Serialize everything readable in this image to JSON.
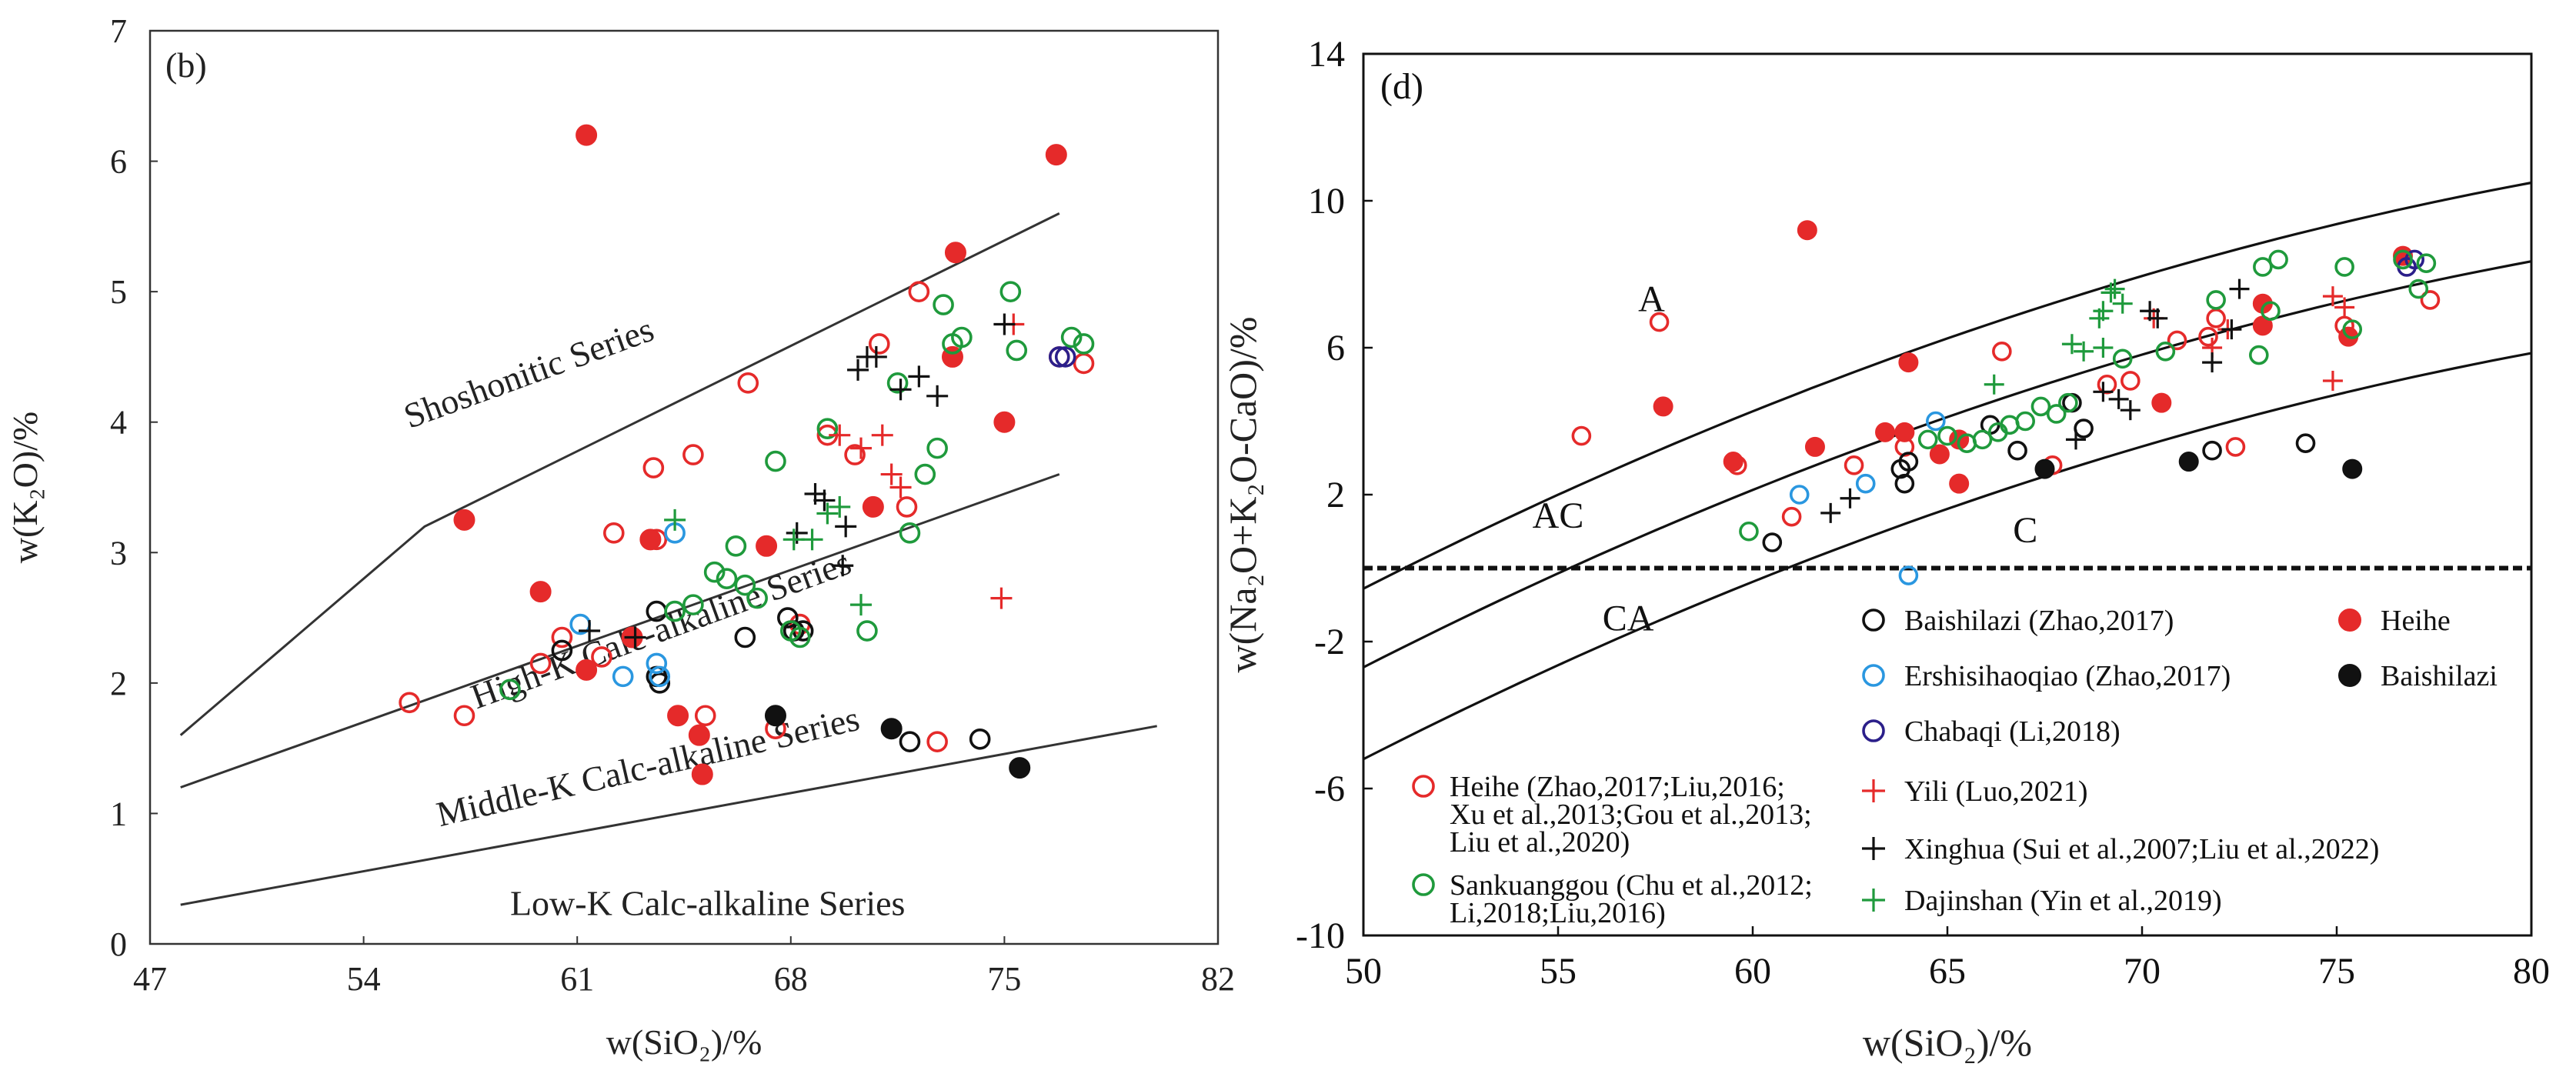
{
  "colors": {
    "red": "#e52a2a",
    "green": "#1f9a3c",
    "blue": "#2a97e0",
    "navy": "#2b1f8a",
    "black": "#111111"
  },
  "chart_data": [
    {
      "type": "scatter",
      "panel_label": "(b)",
      "xlabel": "w(SiO₂)/%",
      "ylabel": "w(K₂O)/%",
      "xlim": [
        47,
        82
      ],
      "ylim": [
        0,
        7
      ],
      "xticks": [
        47,
        54,
        61,
        68,
        75,
        82
      ],
      "yticks": [
        0,
        1,
        2,
        3,
        4,
        5,
        6,
        7
      ],
      "region_labels": [
        "Shoshonitic Series",
        "High-K Calc-alkaline Series",
        "Middle-K Calc-alkaline Series",
        "Low-K Calc-alkaline Series"
      ],
      "boundary_lines": [
        [
          [
            48,
            1.6
          ],
          [
            56,
            3.2
          ],
          [
            76.8,
            5.6
          ]
        ],
        [
          [
            48,
            1.2
          ],
          [
            76.8,
            3.6
          ]
        ],
        [
          [
            48,
            0.3
          ],
          [
            80,
            1.67
          ]
        ]
      ],
      "series": [
        {
          "name": "Heihe (Zhao,2017;Liu,2016;Xu et al.,2013;Gou et al.,2013;Liu et al.,2020)",
          "marker": "open-circle",
          "color": "red",
          "x": [
            55.5,
            57.3,
            59.8,
            60.5,
            62.2,
            63.5,
            63.6,
            64.8,
            65.2,
            66.6,
            67.5,
            68.3,
            69.2,
            70.1,
            70.9,
            71.8,
            72.2,
            76.8,
            77.6,
            72.8,
            61.8
          ],
          "y": [
            1.85,
            1.75,
            2.15,
            2.35,
            3.15,
            3.65,
            3.1,
            3.75,
            1.75,
            4.3,
            1.65,
            2.45,
            3.9,
            3.75,
            4.6,
            3.35,
            5.0,
            4.5,
            4.45,
            1.55,
            2.2
          ]
        },
        {
          "name": "Heihe",
          "marker": "filled-circle",
          "color": "red",
          "x": [
            61.3,
            57.3,
            59.8,
            61.3,
            62.8,
            63.4,
            64.3,
            65.0,
            65.1,
            67.2,
            70.7,
            73.4,
            73.3,
            75.0,
            76.7
          ],
          "y": [
            6.2,
            3.25,
            2.7,
            2.1,
            2.35,
            3.1,
            1.75,
            1.6,
            1.3,
            3.05,
            3.35,
            5.3,
            4.5,
            4.0,
            6.05
          ]
        },
        {
          "name": "Baishilazi (Zhao,2017)",
          "marker": "open-circle",
          "color": "black",
          "x": [
            60.5,
            63.6,
            63.6,
            63.7,
            66.5,
            67.9,
            68.1,
            68.4,
            71.9,
            74.2
          ],
          "y": [
            2.25,
            2.55,
            2.05,
            2.0,
            2.35,
            2.5,
            2.4,
            2.4,
            1.55,
            1.57
          ]
        },
        {
          "name": "Baishilazi",
          "marker": "filled-circle",
          "color": "black",
          "x": [
            67.5,
            71.3,
            75.5
          ],
          "y": [
            1.75,
            1.65,
            1.35
          ]
        },
        {
          "name": "Ershisihaoqiao (Zhao,2017)",
          "marker": "open-circle",
          "color": "blue",
          "x": [
            61.1,
            62.5,
            63.6,
            63.7,
            64.2
          ],
          "y": [
            2.45,
            2.05,
            2.15,
            2.05,
            3.15
          ]
        },
        {
          "name": "Chabaqi (Li,2018)",
          "marker": "open-circle",
          "color": "navy",
          "x": [
            76.8,
            77.0
          ],
          "y": [
            4.5,
            4.5
          ]
        },
        {
          "name": "Sankuanggou (Chu et al.,2012;Li,2018;Liu,2016)",
          "marker": "open-circle",
          "color": "green",
          "x": [
            58.8,
            64.2,
            64.8,
            65.5,
            65.9,
            66.2,
            66.5,
            66.9,
            67.5,
            68.0,
            68.3,
            69.2,
            70.5,
            71.5,
            71.9,
            72.4,
            72.8,
            73.0,
            73.3,
            73.6,
            75.2,
            75.4,
            77.2,
            77.6
          ],
          "y": [
            1.95,
            2.55,
            2.6,
            2.85,
            2.8,
            3.05,
            2.75,
            2.65,
            3.7,
            2.4,
            2.35,
            3.95,
            2.4,
            4.3,
            3.15,
            3.6,
            3.8,
            4.9,
            4.6,
            4.65,
            5.0,
            4.55,
            4.65,
            4.6
          ]
        },
        {
          "name": "Yili (Luo,2021)",
          "marker": "plus",
          "color": "red",
          "x": [
            69.6,
            70.3,
            71.0,
            71.3,
            71.6,
            74.9,
            75.3
          ],
          "y": [
            3.9,
            3.8,
            3.9,
            3.6,
            3.5,
            2.65,
            4.75
          ]
        },
        {
          "name": "Xinghua (Sui et al.,2007;Liu et al.,2022)",
          "marker": "plus",
          "color": "black",
          "x": [
            61.4,
            62.9,
            68.2,
            68.8,
            69.1,
            69.7,
            69.8,
            70.2,
            70.5,
            70.8,
            71.6,
            72.2,
            72.8,
            75.0
          ],
          "y": [
            2.4,
            2.35,
            3.15,
            3.45,
            3.4,
            2.9,
            3.2,
            4.4,
            4.5,
            4.5,
            4.25,
            4.35,
            4.2,
            4.75
          ]
        },
        {
          "name": "Dajinshan (Yin et al.,2019)",
          "marker": "plus",
          "color": "green",
          "x": [
            64.2,
            68.1,
            68.7,
            69.2,
            69.6,
            70.3
          ],
          "y": [
            3.25,
            3.1,
            3.1,
            3.3,
            3.35,
            2.6
          ]
        }
      ]
    },
    {
      "type": "scatter",
      "panel_label": "(d)",
      "xlabel": "w(SiO₂)/%",
      "ylabel": "w(Na₂O+K₂O-CaO)/%",
      "xlim": [
        50,
        80
      ],
      "ylim": [
        -10,
        14
      ],
      "xticks": [
        50,
        55,
        60,
        65,
        70,
        75,
        80
      ],
      "yticks": [
        -10,
        -6,
        -2,
        2,
        6,
        10,
        14
      ],
      "region_labels": [
        "A",
        "AC",
        "CA",
        "C"
      ],
      "dashed_line_y": 0,
      "boundary_curves": [
        {
          "a": -41.86,
          "b": 1.112,
          "c": -0.00572
        },
        {
          "a": -44.0,
          "b": 1.112,
          "c": -0.00572
        },
        {
          "a": -46.5,
          "b": 1.112,
          "c": -0.00572
        }
      ],
      "legend": [
        {
          "label": "Baishilazi (Zhao,2017)",
          "marker": "open-circle",
          "color": "black"
        },
        {
          "label": "Heihe",
          "marker": "filled-circle",
          "color": "red"
        },
        {
          "label": "Ershisihaoqiao (Zhao,2017)",
          "marker": "open-circle",
          "color": "blue"
        },
        {
          "label": "Baishilazi",
          "marker": "filled-circle",
          "color": "black"
        },
        {
          "label": "Chabaqi (Li,2018)",
          "marker": "open-circle",
          "color": "navy"
        },
        {
          "label": "Yili (Luo,2021)",
          "marker": "plus",
          "color": "red"
        },
        {
          "label": "Xinghua (Sui et al.,2007;Liu et al.,2022)",
          "marker": "plus",
          "color": "black"
        },
        {
          "label": "Dajinshan (Yin et al.,2019)",
          "marker": "plus",
          "color": "green"
        }
      ],
      "legend_left": [
        {
          "lines": [
            "Heihe (Zhao,2017;Liu,2016;",
            "Xu et al.,2013;Gou et al.,2013;",
            "Liu et al.,2020)"
          ],
          "marker": "open-circle",
          "color": "red"
        },
        {
          "lines": [
            "Sankuanggou (Chu et al.,2012;",
            "Li,2018;Liu,2016)"
          ],
          "marker": "open-circle",
          "color": "green"
        }
      ],
      "series": [
        {
          "name": "Heihe (Zhao,2017;Liu,2016;Xu et al.,2013;Gou et al.,2013;Liu et al.,2020)",
          "marker": "open-circle",
          "color": "red",
          "x": [
            55.6,
            57.6,
            59.6,
            61.0,
            62.6,
            63.9,
            66.4,
            67.7,
            69.1,
            69.7,
            70.9,
            71.7,
            71.9,
            72.4,
            75.2,
            77.4
          ],
          "y": [
            3.6,
            6.7,
            2.8,
            1.4,
            2.8,
            3.3,
            5.9,
            2.8,
            5.0,
            5.1,
            6.2,
            6.3,
            6.8,
            3.3,
            6.6,
            7.3
          ]
        },
        {
          "name": "Heihe",
          "marker": "filled-circle",
          "color": "red",
          "x": [
            57.7,
            59.5,
            61.4,
            61.6,
            63.4,
            63.9,
            64.0,
            64.8,
            65.3,
            65.3,
            70.5,
            73.1,
            73.1,
            75.3,
            76.7
          ],
          "y": [
            4.4,
            2.9,
            9.2,
            3.3,
            3.7,
            3.7,
            5.6,
            3.1,
            3.5,
            2.3,
            4.5,
            7.2,
            6.6,
            6.3,
            8.5
          ]
        },
        {
          "name": "Baishilazi (Zhao,2017)",
          "marker": "open-circle",
          "color": "black",
          "x": [
            60.5,
            63.8,
            63.9,
            64.0,
            66.1,
            66.8,
            68.2,
            68.5,
            71.8,
            74.2
          ],
          "y": [
            0.7,
            2.7,
            2.3,
            2.9,
            3.9,
            3.2,
            4.5,
            3.8,
            3.2,
            3.4
          ]
        },
        {
          "name": "Baishilazi",
          "marker": "filled-circle",
          "color": "black",
          "x": [
            67.5,
            71.2,
            75.4
          ],
          "y": [
            2.7,
            2.9,
            2.7
          ]
        },
        {
          "name": "Ershisihaoqiao (Zhao,2017)",
          "marker": "open-circle",
          "color": "blue",
          "x": [
            61.2,
            62.9,
            64.0,
            64.7
          ],
          "y": [
            2.0,
            2.3,
            -0.2,
            4.0
          ]
        },
        {
          "name": "Chabaqi (Li,2018)",
          "marker": "open-circle",
          "color": "navy",
          "x": [
            76.8,
            77.0
          ],
          "y": [
            8.2,
            8.4
          ]
        },
        {
          "name": "Sankuanggou (Chu et al.,2012;Li,2018;Liu,2016)",
          "marker": "open-circle",
          "color": "green",
          "x": [
            59.9,
            64.5,
            65.0,
            65.5,
            65.9,
            66.3,
            66.6,
            67.0,
            67.4,
            67.8,
            68.1,
            69.5,
            70.6,
            71.9,
            73.0,
            73.1,
            73.3,
            73.5,
            75.2,
            75.4,
            76.7,
            77.1,
            77.3
          ],
          "y": [
            1.0,
            3.5,
            3.6,
            3.4,
            3.5,
            3.7,
            3.9,
            4.0,
            4.4,
            4.2,
            4.5,
            5.7,
            5.9,
            7.3,
            5.8,
            8.2,
            7.0,
            8.4,
            8.2,
            6.5,
            8.4,
            7.6,
            8.3
          ]
        },
        {
          "name": "Yili (Luo,2021)",
          "marker": "plus",
          "color": "red",
          "x": [
            70.3,
            71.8,
            72.2,
            74.9,
            74.9,
            75.2
          ],
          "y": [
            6.8,
            6.0,
            6.5,
            5.1,
            7.4,
            7.1
          ]
        },
        {
          "name": "Xinghua (Sui et al.,2007;Liu et al.,2022)",
          "marker": "plus",
          "color": "black",
          "x": [
            62.0,
            62.5,
            68.3,
            69.0,
            69.4,
            69.7,
            70.2,
            70.4,
            71.8,
            72.3,
            72.5
          ],
          "y": [
            1.5,
            1.9,
            3.5,
            4.8,
            4.6,
            4.3,
            7.0,
            6.8,
            5.6,
            6.5,
            7.6
          ]
        },
        {
          "name": "Dajinshan (Yin et al.,2019)",
          "marker": "plus",
          "color": "green",
          "x": [
            66.2,
            68.2,
            68.5,
            68.9,
            69.0,
            69.2,
            69.3,
            69.5,
            69.0
          ],
          "y": [
            5.0,
            6.1,
            5.9,
            6.8,
            7.0,
            7.5,
            7.6,
            7.2,
            6.0
          ]
        }
      ]
    }
  ]
}
